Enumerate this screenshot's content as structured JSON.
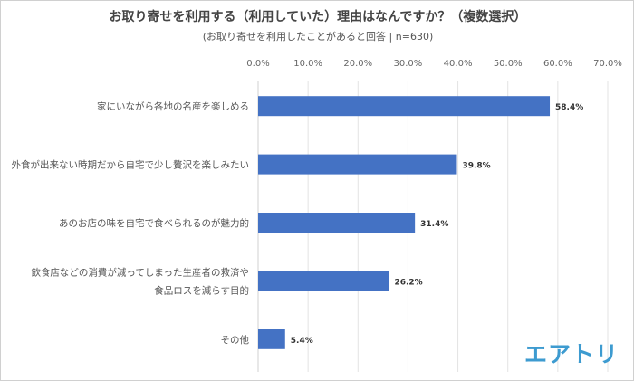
{
  "chart_data": {
    "type": "bar",
    "orientation": "horizontal",
    "title": "お取り寄せを利用する（利用していた）理由はなんですか？（複数選択）",
    "subtitle": "(お取り寄せを利用したことがあると回答 | n=630)",
    "categories": [
      [
        "家にいながら各地の名産を楽しめる"
      ],
      [
        "外食が出来ない時期だから自宅で少し贅沢を楽しみたい"
      ],
      [
        "あのお店の味を自宅で食べられるのが魅力的"
      ],
      [
        "飲食店などの消費が減ってしまった生産者の救済や",
        "食品ロスを減らす目的"
      ],
      [
        "その他"
      ]
    ],
    "values": [
      58.4,
      39.8,
      31.4,
      26.2,
      5.4
    ],
    "value_labels": [
      "58.4%",
      "39.8%",
      "31.4%",
      "26.2%",
      "5.4%"
    ],
    "xlim": [
      0,
      70
    ],
    "xticks": [
      "0.0%",
      "10.0%",
      "20.0%",
      "30.0%",
      "40.0%",
      "50.0%",
      "60.0%",
      "70.0%"
    ],
    "grid": true,
    "bar_color": "#4472c4"
  },
  "logo": "エアトリ"
}
